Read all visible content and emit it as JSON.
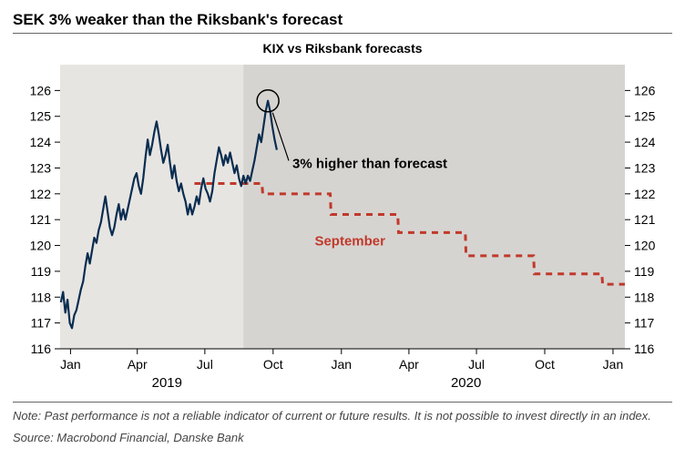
{
  "title": "SEK 3% weaker than the Riksbank's forecast",
  "chart": {
    "type": "line",
    "title": "KIX vs Riksbank forecasts",
    "ylim": [
      116,
      127
    ],
    "yticks": [
      116,
      117,
      118,
      119,
      120,
      121,
      122,
      123,
      124,
      125,
      126
    ],
    "x_start": "2019-01-01",
    "x_end": "2021-01-31",
    "x_ticks": [
      {
        "t": "2019-01-15",
        "label": "Jan"
      },
      {
        "t": "2019-04-15",
        "label": "Apr"
      },
      {
        "t": "2019-07-15",
        "label": "Jul"
      },
      {
        "t": "2019-10-15",
        "label": "Oct"
      },
      {
        "t": "2020-01-15",
        "label": "Jan"
      },
      {
        "t": "2020-04-15",
        "label": "Apr"
      },
      {
        "t": "2020-07-15",
        "label": "Jul"
      },
      {
        "t": "2020-10-15",
        "label": "Oct"
      },
      {
        "t": "2021-01-15",
        "label": "Jan"
      }
    ],
    "year_labels": [
      {
        "t": "2019-05-25",
        "label": "2019"
      },
      {
        "t": "2020-07-01",
        "label": "2020"
      }
    ],
    "plot_area_bg": "#e7e5e2",
    "outer_bg": "#ffffff",
    "forecast_shade_from": "2019-09-05",
    "forecast_shade_color": "#d6d4d1",
    "tick_font_size": 14,
    "tick_color": "#000000",
    "kix_series": {
      "color": "#0a2d50",
      "width": 2.2,
      "points": [
        [
          "2019-01-02",
          117.8
        ],
        [
          "2019-01-05",
          118.2
        ],
        [
          "2019-01-08",
          117.4
        ],
        [
          "2019-01-11",
          117.9
        ],
        [
          "2019-01-14",
          117.0
        ],
        [
          "2019-01-17",
          116.8
        ],
        [
          "2019-01-20",
          117.3
        ],
        [
          "2019-01-23",
          117.5
        ],
        [
          "2019-01-26",
          117.9
        ],
        [
          "2019-01-29",
          118.3
        ],
        [
          "2019-02-01",
          118.6
        ],
        [
          "2019-02-04",
          119.2
        ],
        [
          "2019-02-07",
          119.7
        ],
        [
          "2019-02-10",
          119.3
        ],
        [
          "2019-02-13",
          119.8
        ],
        [
          "2019-02-16",
          120.3
        ],
        [
          "2019-02-19",
          120.1
        ],
        [
          "2019-02-22",
          120.6
        ],
        [
          "2019-02-25",
          120.9
        ],
        [
          "2019-02-28",
          121.4
        ],
        [
          "2019-03-03",
          121.9
        ],
        [
          "2019-03-06",
          121.3
        ],
        [
          "2019-03-09",
          120.7
        ],
        [
          "2019-03-12",
          120.4
        ],
        [
          "2019-03-15",
          120.7
        ],
        [
          "2019-03-18",
          121.2
        ],
        [
          "2019-03-21",
          121.6
        ],
        [
          "2019-03-24",
          121.0
        ],
        [
          "2019-03-27",
          121.4
        ],
        [
          "2019-03-30",
          121.0
        ],
        [
          "2019-04-02",
          121.4
        ],
        [
          "2019-04-05",
          121.8
        ],
        [
          "2019-04-08",
          122.2
        ],
        [
          "2019-04-11",
          122.6
        ],
        [
          "2019-04-14",
          122.8
        ],
        [
          "2019-04-17",
          122.3
        ],
        [
          "2019-04-20",
          122.0
        ],
        [
          "2019-04-23",
          122.6
        ],
        [
          "2019-04-26",
          123.4
        ],
        [
          "2019-04-29",
          124.1
        ],
        [
          "2019-05-02",
          123.5
        ],
        [
          "2019-05-05",
          123.9
        ],
        [
          "2019-05-08",
          124.4
        ],
        [
          "2019-05-11",
          124.8
        ],
        [
          "2019-05-14",
          124.3
        ],
        [
          "2019-05-17",
          123.7
        ],
        [
          "2019-05-20",
          123.2
        ],
        [
          "2019-05-23",
          123.5
        ],
        [
          "2019-05-26",
          123.9
        ],
        [
          "2019-05-29",
          123.2
        ],
        [
          "2019-06-01",
          122.6
        ],
        [
          "2019-06-04",
          123.1
        ],
        [
          "2019-06-07",
          122.5
        ],
        [
          "2019-06-10",
          122.1
        ],
        [
          "2019-06-13",
          122.4
        ],
        [
          "2019-06-16",
          122.0
        ],
        [
          "2019-06-19",
          121.7
        ],
        [
          "2019-06-22",
          121.2
        ],
        [
          "2019-06-25",
          121.6
        ],
        [
          "2019-06-28",
          121.2
        ],
        [
          "2019-07-01",
          121.5
        ],
        [
          "2019-07-04",
          121.9
        ],
        [
          "2019-07-07",
          121.6
        ],
        [
          "2019-07-10",
          122.2
        ],
        [
          "2019-07-13",
          122.6
        ],
        [
          "2019-07-16",
          122.2
        ],
        [
          "2019-07-19",
          122.0
        ],
        [
          "2019-07-22",
          121.7
        ],
        [
          "2019-07-25",
          122.1
        ],
        [
          "2019-07-28",
          122.8
        ],
        [
          "2019-07-31",
          123.3
        ],
        [
          "2019-08-03",
          123.8
        ],
        [
          "2019-08-06",
          123.5
        ],
        [
          "2019-08-09",
          123.1
        ],
        [
          "2019-08-12",
          123.5
        ],
        [
          "2019-08-15",
          123.2
        ],
        [
          "2019-08-18",
          123.6
        ],
        [
          "2019-08-21",
          123.2
        ],
        [
          "2019-08-24",
          122.8
        ],
        [
          "2019-08-27",
          123.1
        ],
        [
          "2019-08-30",
          122.6
        ],
        [
          "2019-09-02",
          122.3
        ],
        [
          "2019-09-05",
          122.7
        ],
        [
          "2019-09-08",
          122.4
        ],
        [
          "2019-09-11",
          122.7
        ],
        [
          "2019-09-14",
          122.5
        ],
        [
          "2019-09-17",
          122.9
        ],
        [
          "2019-09-20",
          123.3
        ],
        [
          "2019-09-23",
          123.8
        ],
        [
          "2019-09-26",
          124.3
        ],
        [
          "2019-09-29",
          124.0
        ],
        [
          "2019-10-02",
          124.6
        ],
        [
          "2019-10-05",
          125.2
        ],
        [
          "2019-10-08",
          125.6
        ],
        [
          "2019-10-11",
          125.2
        ],
        [
          "2019-10-14",
          124.6
        ],
        [
          "2019-10-17",
          124.1
        ],
        [
          "2019-10-20",
          123.7
        ]
      ]
    },
    "forecast_series": {
      "label": "September",
      "label_color": "#c0392b",
      "label_fontsize": 15,
      "color": "#c0392b",
      "width": 3,
      "dash": "7,6",
      "steps": [
        [
          "2019-07-01",
          122.4
        ],
        [
          "2019-09-30",
          122.4
        ],
        [
          "2019-10-01",
          122.0
        ],
        [
          "2019-12-31",
          122.0
        ],
        [
          "2020-01-01",
          121.2
        ],
        [
          "2020-03-31",
          121.2
        ],
        [
          "2020-04-01",
          120.5
        ],
        [
          "2020-06-30",
          120.5
        ],
        [
          "2020-07-01",
          119.6
        ],
        [
          "2020-09-30",
          119.6
        ],
        [
          "2020-10-01",
          118.9
        ],
        [
          "2020-12-31",
          118.9
        ],
        [
          "2021-01-01",
          118.5
        ],
        [
          "2021-01-31",
          118.5
        ]
      ]
    },
    "annotation": {
      "circle_at": [
        "2019-10-08",
        125.6
      ],
      "circle_r": 12,
      "circle_color": "#000000",
      "text": "3% higher than forecast",
      "text_at": [
        "2019-11-10",
        123.0
      ],
      "text_fontsize": 15,
      "arrow_color": "#000000"
    }
  },
  "note": "Note: Past performance is not a reliable indicator of current or future results. It is not possible to invest directly in an index.",
  "source": "Source: Macrobond Financial, Danske Bank"
}
